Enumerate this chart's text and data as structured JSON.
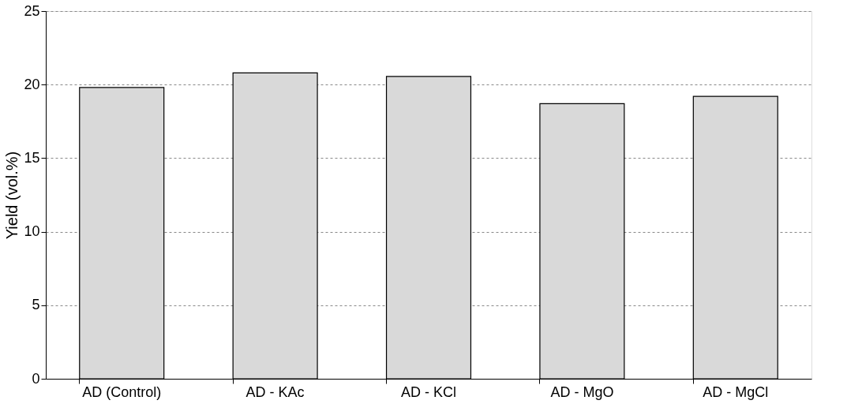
{
  "chart_data": {
    "type": "bar",
    "ylabel": "Yield (vol.%)",
    "categories": [
      "AD (Control)",
      "AD - KAc",
      "AD - KCl",
      "AD - MgO",
      "AD - MgCl"
    ],
    "values": [
      19.8,
      20.8,
      20.55,
      18.7,
      19.2
    ],
    "color": "#d9d9d9",
    "ylim": [
      0,
      25
    ],
    "yticks": [
      0,
      5,
      10,
      15,
      20,
      25
    ],
    "grid": "y"
  }
}
